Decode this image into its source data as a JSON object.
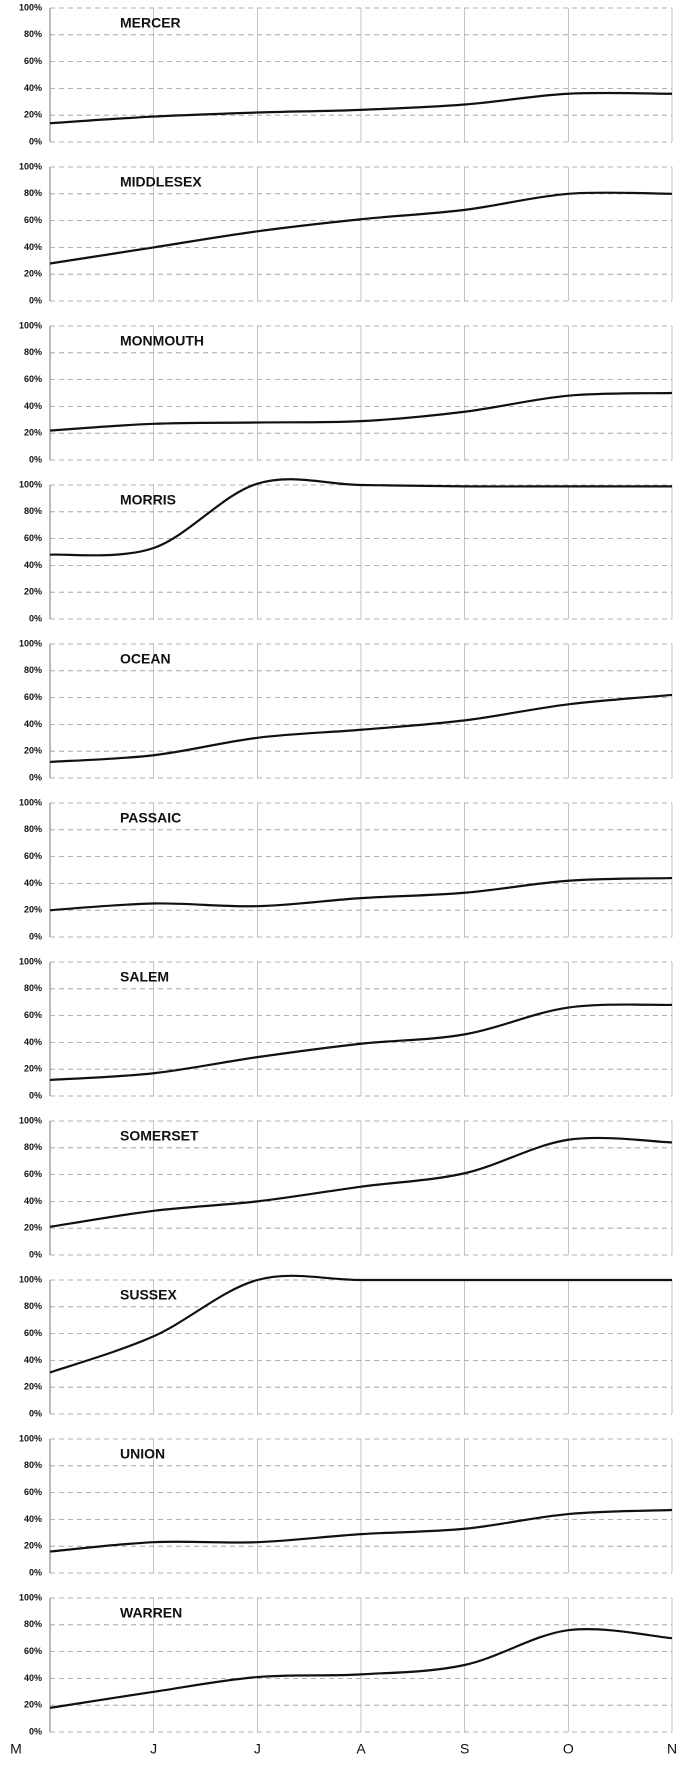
{
  "chart_data": [
    {
      "type": "line",
      "title": "MERCER",
      "values": [
        14,
        19,
        22,
        24,
        28,
        36,
        36
      ],
      "color": "#111111",
      "ylim": [
        0,
        100
      ],
      "yticks": [
        {
          "value": 0,
          "label": "0%"
        },
        {
          "value": 20,
          "label": "20%"
        },
        {
          "value": 40,
          "label": "40%"
        },
        {
          "value": 60,
          "label": "60%"
        },
        {
          "value": 80,
          "label": "80%"
        },
        {
          "value": 100,
          "label": "100%"
        }
      ],
      "grid": true
    },
    {
      "type": "line",
      "title": "MIDDLESEX",
      "values": [
        28,
        40,
        52,
        61,
        68,
        80,
        80
      ],
      "color": "#111111",
      "ylim": [
        0,
        100
      ],
      "yticks": [
        {
          "value": 0,
          "label": "0%"
        },
        {
          "value": 20,
          "label": "20%"
        },
        {
          "value": 40,
          "label": "40%"
        },
        {
          "value": 60,
          "label": "60%"
        },
        {
          "value": 80,
          "label": "80%"
        },
        {
          "value": 100,
          "label": "100%"
        }
      ],
      "grid": true
    },
    {
      "type": "line",
      "title": "MONMOUTH",
      "values": [
        22,
        27,
        28,
        29,
        36,
        48,
        50
      ],
      "color": "#111111",
      "ylim": [
        0,
        100
      ],
      "yticks": [
        {
          "value": 0,
          "label": "0%"
        },
        {
          "value": 20,
          "label": "20%"
        },
        {
          "value": 40,
          "label": "40%"
        },
        {
          "value": 60,
          "label": "60%"
        },
        {
          "value": 80,
          "label": "80%"
        },
        {
          "value": 100,
          "label": "100%"
        }
      ],
      "grid": true
    },
    {
      "type": "line",
      "title": "MORRIS",
      "values": [
        48,
        53,
        101,
        100,
        99,
        99,
        99
      ],
      "color": "#111111",
      "ylim": [
        0,
        100
      ],
      "yticks": [
        {
          "value": 0,
          "label": "0%"
        },
        {
          "value": 20,
          "label": "20%"
        },
        {
          "value": 40,
          "label": "40%"
        },
        {
          "value": 60,
          "label": "60%"
        },
        {
          "value": 80,
          "label": "80%"
        },
        {
          "value": 100,
          "label": "100%"
        }
      ],
      "grid": true
    },
    {
      "type": "line",
      "title": "OCEAN",
      "values": [
        12,
        17,
        30,
        36,
        43,
        55,
        62
      ],
      "color": "#111111",
      "ylim": [
        0,
        100
      ],
      "yticks": [
        {
          "value": 0,
          "label": "0%"
        },
        {
          "value": 20,
          "label": "20%"
        },
        {
          "value": 40,
          "label": "40%"
        },
        {
          "value": 60,
          "label": "60%"
        },
        {
          "value": 80,
          "label": "80%"
        },
        {
          "value": 100,
          "label": "100%"
        }
      ],
      "grid": true
    },
    {
      "type": "line",
      "title": "PASSAIC",
      "values": [
        20,
        25,
        23,
        29,
        33,
        42,
        44
      ],
      "color": "#111111",
      "ylim": [
        0,
        100
      ],
      "yticks": [
        {
          "value": 0,
          "label": "0%"
        },
        {
          "value": 20,
          "label": "20%"
        },
        {
          "value": 40,
          "label": "40%"
        },
        {
          "value": 60,
          "label": "60%"
        },
        {
          "value": 80,
          "label": "80%"
        },
        {
          "value": 100,
          "label": "100%"
        }
      ],
      "grid": true
    },
    {
      "type": "line",
      "title": "SALEM",
      "values": [
        12,
        17,
        29,
        39,
        46,
        66,
        68
      ],
      "color": "#111111",
      "ylim": [
        0,
        100
      ],
      "yticks": [
        {
          "value": 0,
          "label": "0%"
        },
        {
          "value": 20,
          "label": "20%"
        },
        {
          "value": 40,
          "label": "40%"
        },
        {
          "value": 60,
          "label": "60%"
        },
        {
          "value": 80,
          "label": "80%"
        },
        {
          "value": 100,
          "label": "100%"
        }
      ],
      "grid": true
    },
    {
      "type": "line",
      "title": "SOMERSET",
      "values": [
        21,
        33,
        40,
        51,
        61,
        86,
        84
      ],
      "color": "#111111",
      "ylim": [
        0,
        100
      ],
      "yticks": [
        {
          "value": 0,
          "label": "0%"
        },
        {
          "value": 20,
          "label": "20%"
        },
        {
          "value": 40,
          "label": "40%"
        },
        {
          "value": 60,
          "label": "60%"
        },
        {
          "value": 80,
          "label": "80%"
        },
        {
          "value": 100,
          "label": "100%"
        }
      ],
      "grid": true
    },
    {
      "type": "line",
      "title": "SUSSEX",
      "values": [
        31,
        58,
        100,
        100,
        100,
        100,
        100
      ],
      "color": "#111111",
      "ylim": [
        0,
        100
      ],
      "yticks": [
        {
          "value": 0,
          "label": "0%"
        },
        {
          "value": 20,
          "label": "20%"
        },
        {
          "value": 40,
          "label": "40%"
        },
        {
          "value": 60,
          "label": "60%"
        },
        {
          "value": 80,
          "label": "80%"
        },
        {
          "value": 100,
          "label": "100%"
        }
      ],
      "grid": true
    },
    {
      "type": "line",
      "title": "UNION",
      "values": [
        16,
        23,
        23,
        29,
        33,
        44,
        47
      ],
      "color": "#111111",
      "ylim": [
        0,
        100
      ],
      "yticks": [
        {
          "value": 0,
          "label": "0%"
        },
        {
          "value": 20,
          "label": "20%"
        },
        {
          "value": 40,
          "label": "40%"
        },
        {
          "value": 60,
          "label": "60%"
        },
        {
          "value": 80,
          "label": "80%"
        },
        {
          "value": 100,
          "label": "100%"
        }
      ],
      "grid": true
    },
    {
      "type": "line",
      "title": "WARREN",
      "categories": [
        "M",
        "J",
        "J",
        "A",
        "S",
        "O",
        "N"
      ],
      "values": [
        18,
        30,
        41,
        43,
        50,
        76,
        70
      ],
      "color": "#111111",
      "ylim": [
        0,
        100
      ],
      "yticks": [
        {
          "value": 0,
          "label": "0%"
        },
        {
          "value": 20,
          "label": "20%"
        },
        {
          "value": 40,
          "label": "40%"
        },
        {
          "value": 60,
          "label": "60%"
        },
        {
          "value": 80,
          "label": "80%"
        },
        {
          "value": 100,
          "label": "100%"
        }
      ],
      "grid": true
    }
  ]
}
